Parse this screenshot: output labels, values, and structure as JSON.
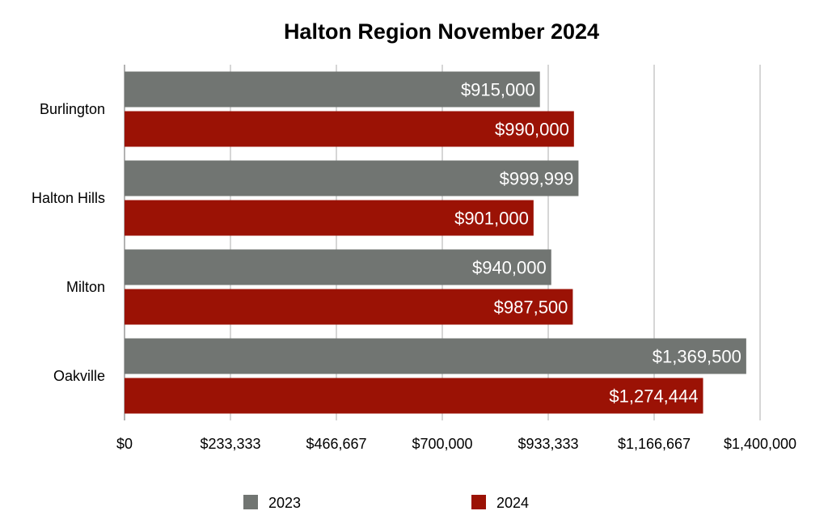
{
  "chart_data": {
    "type": "bar",
    "orientation": "horizontal",
    "title": "Halton Region November 2024",
    "categories": [
      "Burlington",
      "Halton Hills",
      "Milton",
      "Oakville"
    ],
    "series": [
      {
        "name": "2023",
        "color": "#717572",
        "values": [
          915000,
          999999,
          940000,
          1369500
        ],
        "value_labels": [
          "$915,000",
          "$999,999",
          "$940,000",
          "$1,369,500"
        ]
      },
      {
        "name": "2024",
        "color": "#9b1205",
        "values": [
          990000,
          901000,
          987500,
          1274444
        ],
        "value_labels": [
          "$990,000",
          "$901,000",
          "$987,500",
          "$1,274,444"
        ]
      }
    ],
    "xlim": [
      0,
      1400000
    ],
    "xticks": [
      0,
      233333,
      466667,
      700000,
      933333,
      1166667,
      1400000
    ],
    "xtick_labels": [
      "$0",
      "$233,333",
      "$466,667",
      "$700,000",
      "$933,333",
      "$1,166,667",
      "$1,400,000"
    ],
    "grid": true,
    "legend_position": "bottom"
  }
}
